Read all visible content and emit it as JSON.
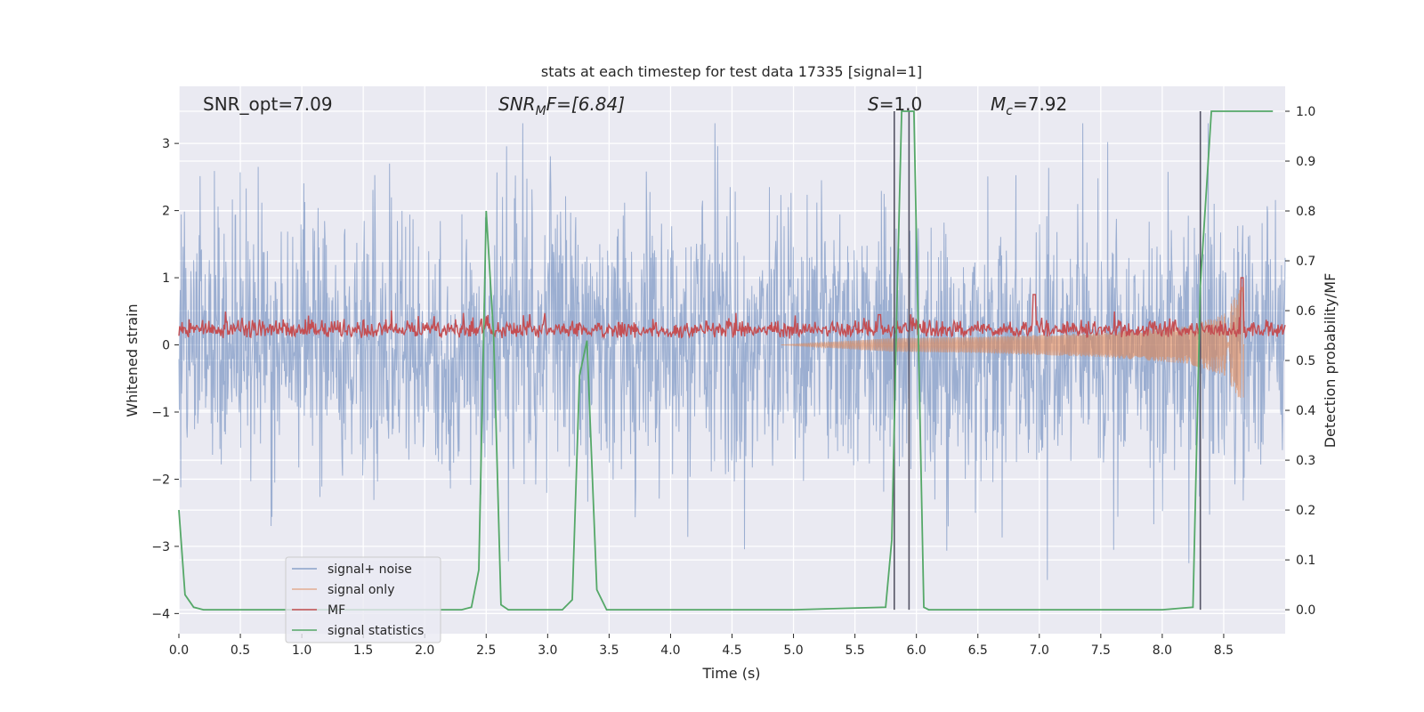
{
  "chart_data": {
    "type": "line",
    "title": "stats at each timestep for test data 17335 [signal=1]",
    "xlabel": "Time (s)",
    "ylabel_left": "Whitened strain",
    "ylabel_right": "Detection probability/MF",
    "xlim": [
      0,
      9
    ],
    "ylim_left": [
      -4.3,
      3.85
    ],
    "ylim_right": [
      -0.048,
      1.05
    ],
    "x_ticks": [
      0.0,
      0.5,
      1.0,
      1.5,
      2.0,
      2.5,
      3.0,
      3.5,
      4.0,
      4.5,
      5.0,
      5.5,
      6.0,
      6.5,
      7.0,
      7.5,
      8.0,
      8.5
    ],
    "x_tick_labels": [
      "0.0",
      "0.5",
      "1.0",
      "1.5",
      "2.0",
      "2.5",
      "3.0",
      "3.5",
      "4.0",
      "4.5",
      "5.0",
      "5.5",
      "6.0",
      "6.5",
      "7.0",
      "7.5",
      "8.0",
      "8.5"
    ],
    "y_left_ticks": [
      -4,
      -3,
      -2,
      -1,
      0,
      1,
      2,
      3
    ],
    "y_left_tick_labels": [
      "−4",
      "−3",
      "−2",
      "−1",
      "0",
      "1",
      "2",
      "3"
    ],
    "y_right_ticks": [
      0.0,
      0.1,
      0.2,
      0.3,
      0.4,
      0.5,
      0.6,
      0.7,
      0.8,
      0.9,
      1.0
    ],
    "y_right_tick_labels": [
      "0.0",
      "0.1",
      "0.2",
      "0.3",
      "0.4",
      "0.5",
      "0.6",
      "0.7",
      "0.8",
      "0.9",
      "1.0"
    ],
    "grid": true,
    "legend_placement": "lower-left",
    "annotations": {
      "snr_opt": "SNR_opt=7.09",
      "snr_mf_prefix": "SNR",
      "snr_mf_sub": "M",
      "snr_mf_suffix": "F=[6.84]",
      "s_prefix": "S",
      "s_suffix": "=1.0",
      "mc_prefix": "M",
      "mc_sub": "c",
      "mc_suffix": "=7.92"
    },
    "series": [
      {
        "name": "signal+ noise",
        "color": "#4c72b0",
        "axis": "left",
        "kind": "noise",
        "amplitude_sigma": 1.0,
        "x_range": [
          0,
          9
        ]
      },
      {
        "name": "signal only",
        "color": "#dd8452",
        "axis": "left",
        "kind": "chirp",
        "envelope": [
          [
            4.9,
            0.0
          ],
          [
            5.8,
            0.1
          ],
          [
            6.5,
            0.12
          ],
          [
            7.5,
            0.18
          ],
          [
            8.2,
            0.28
          ],
          [
            8.5,
            0.45
          ],
          [
            8.66,
            0.9
          ]
        ],
        "merger_time": 8.67
      },
      {
        "name": "MF",
        "color": "#c44e52",
        "axis": "left",
        "kind": "mf",
        "baseline": 0.2,
        "peaks": [
          [
            6.96,
            0.75
          ],
          [
            8.65,
            1.0
          ],
          [
            5.7,
            0.45
          ]
        ]
      },
      {
        "name": "signal statistics",
        "color": "#55a868",
        "axis": "right",
        "x": [
          0.0,
          0.05,
          0.12,
          0.2,
          0.5,
          1.0,
          1.5,
          2.0,
          2.3,
          2.38,
          2.44,
          2.5,
          2.56,
          2.62,
          2.68,
          2.75,
          3.0,
          3.12,
          3.2,
          3.26,
          3.32,
          3.4,
          3.48,
          3.6,
          4.0,
          5.0,
          5.75,
          5.8,
          5.84,
          5.88,
          5.93,
          5.98,
          6.02,
          6.06,
          6.1,
          6.5,
          7.0,
          8.0,
          8.25,
          8.31,
          8.4,
          8.5,
          8.9
        ],
        "y": [
          0.2,
          0.03,
          0.005,
          0.0,
          0.0,
          0.0,
          0.0,
          0.0,
          0.0,
          0.005,
          0.08,
          0.8,
          0.55,
          0.01,
          0.0,
          0.0,
          0.0,
          0.0,
          0.02,
          0.47,
          0.54,
          0.04,
          0.0,
          0.0,
          0.0,
          0.0,
          0.005,
          0.14,
          0.6,
          1.0,
          1.0,
          1.0,
          0.5,
          0.005,
          0.0,
          0.0,
          0.0,
          0.0,
          0.005,
          0.65,
          1.0,
          1.0,
          1.0
        ]
      }
    ],
    "vertical_markers": [
      5.82,
      5.94,
      8.31
    ]
  }
}
